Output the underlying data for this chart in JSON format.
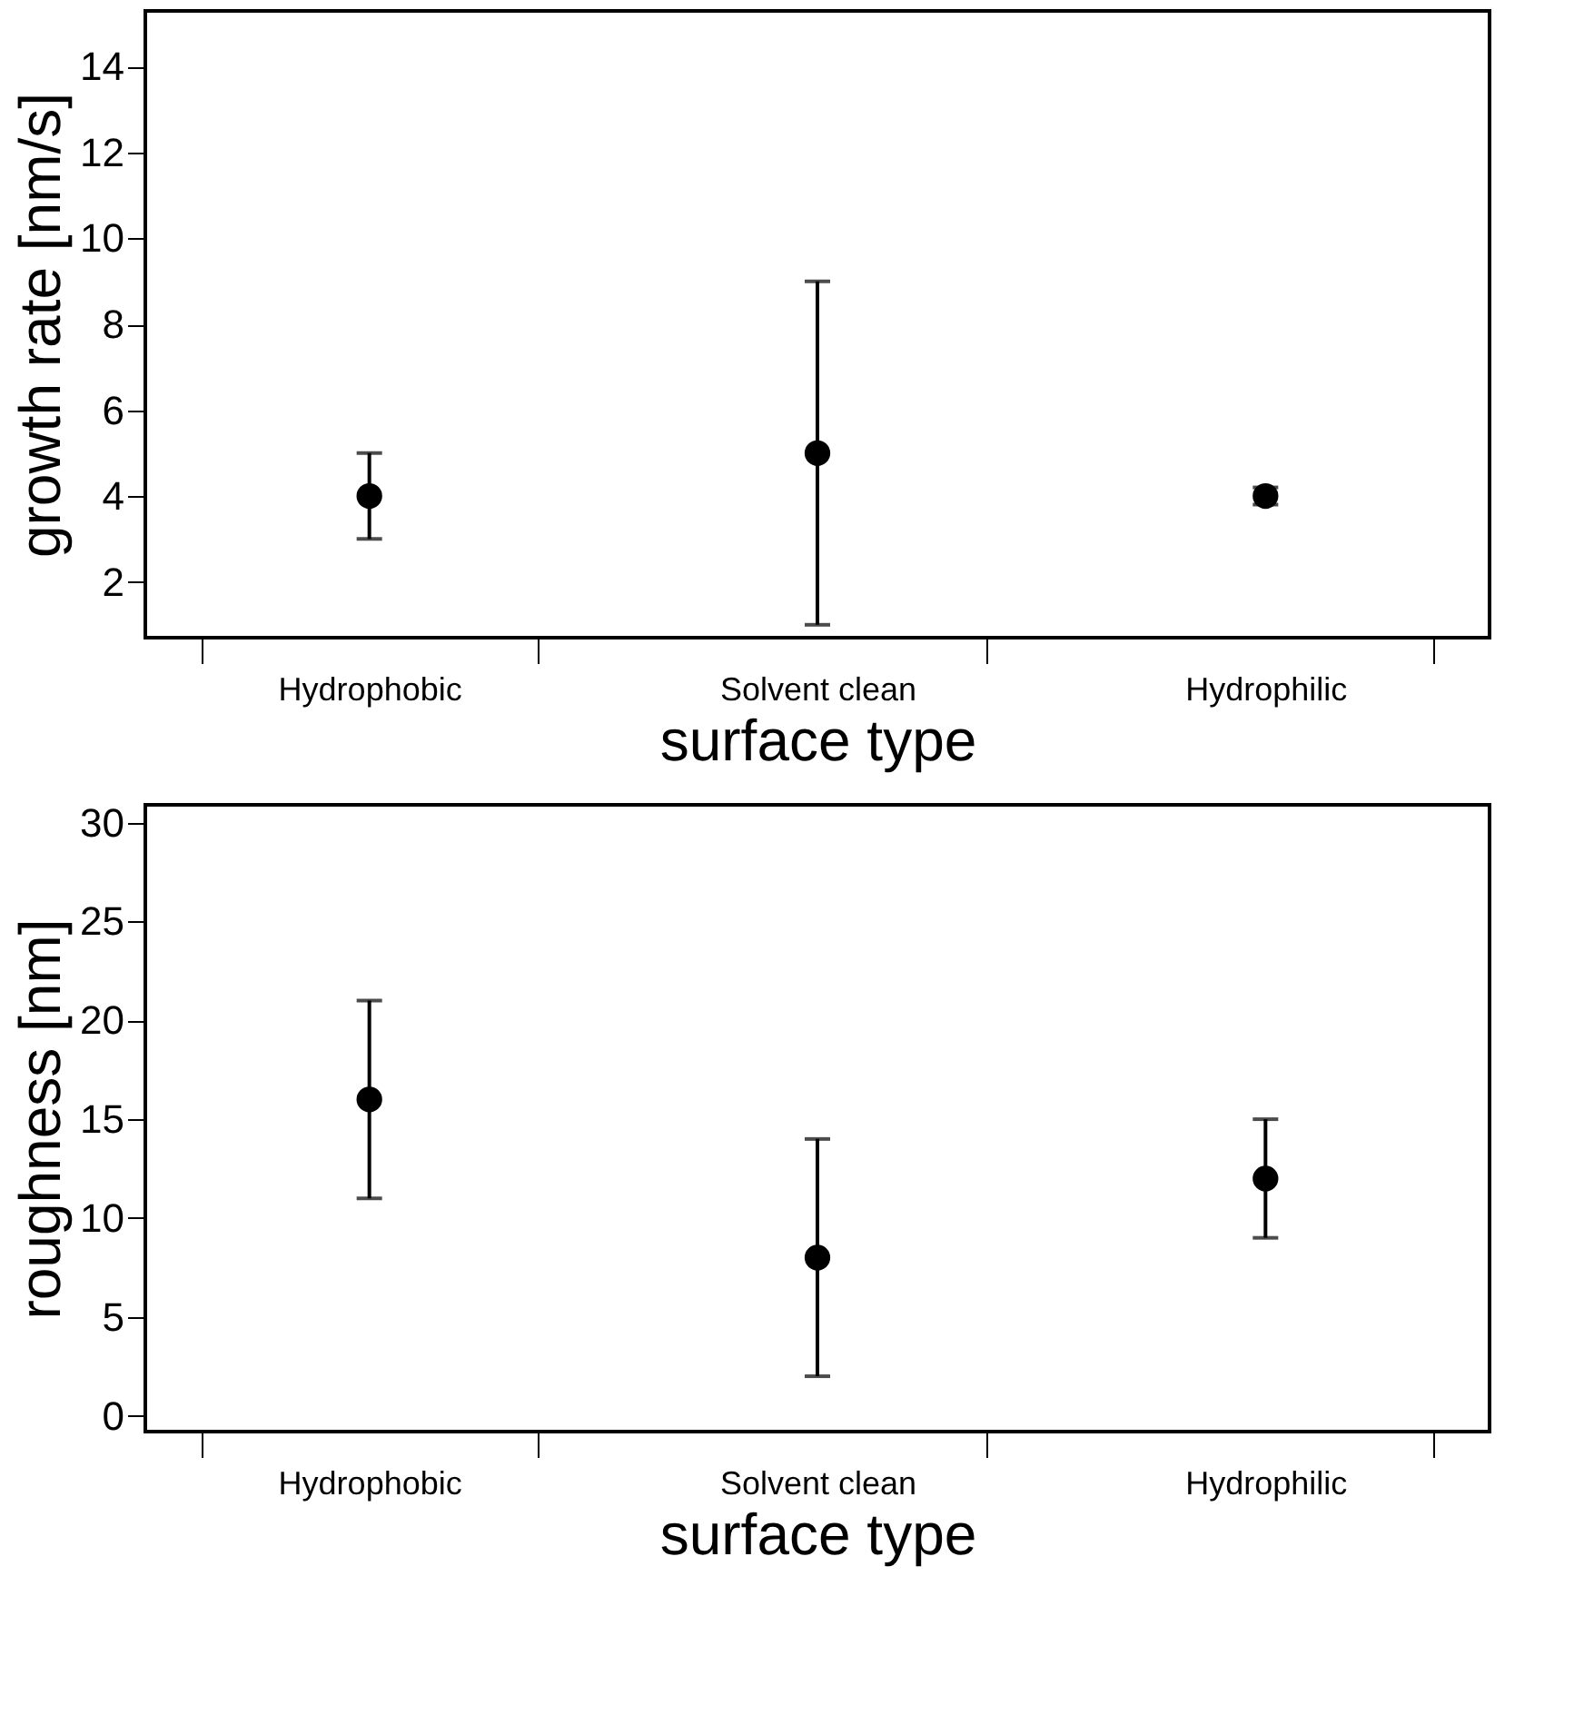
{
  "chart_data": [
    {
      "type": "scatter",
      "xlabel": "surface type",
      "ylabel": "growth rate [nm/s]",
      "categories": [
        "Hydrophobic",
        "Solvent clean",
        "Hydrophilic"
      ],
      "series": [
        {
          "color": "#000000",
          "values": [
            4,
            5,
            4
          ],
          "errors": [
            [
              3,
              5
            ],
            [
              1,
              9
            ],
            [
              3.8,
              4.2
            ]
          ]
        }
      ],
      "ylim": [
        0.7,
        15.3
      ],
      "yticks": [
        2,
        4,
        6,
        8,
        10,
        12,
        14
      ],
      "grid": false,
      "marker": "circle"
    },
    {
      "type": "scatter",
      "xlabel": "surface type",
      "ylabel": "roughness [nm]",
      "categories": [
        "Hydrophobic",
        "Solvent clean",
        "Hydrophilic"
      ],
      "series": [
        {
          "color": "#000000",
          "values": [
            16,
            8,
            12
          ],
          "errors": [
            [
              11,
              21
            ],
            [
              2,
              14
            ],
            [
              9,
              15
            ]
          ]
        }
      ],
      "ylim": [
        -0.8,
        30.9
      ],
      "yticks": [
        0,
        5,
        10,
        15,
        20,
        25,
        30
      ],
      "grid": false,
      "marker": "circle"
    }
  ]
}
